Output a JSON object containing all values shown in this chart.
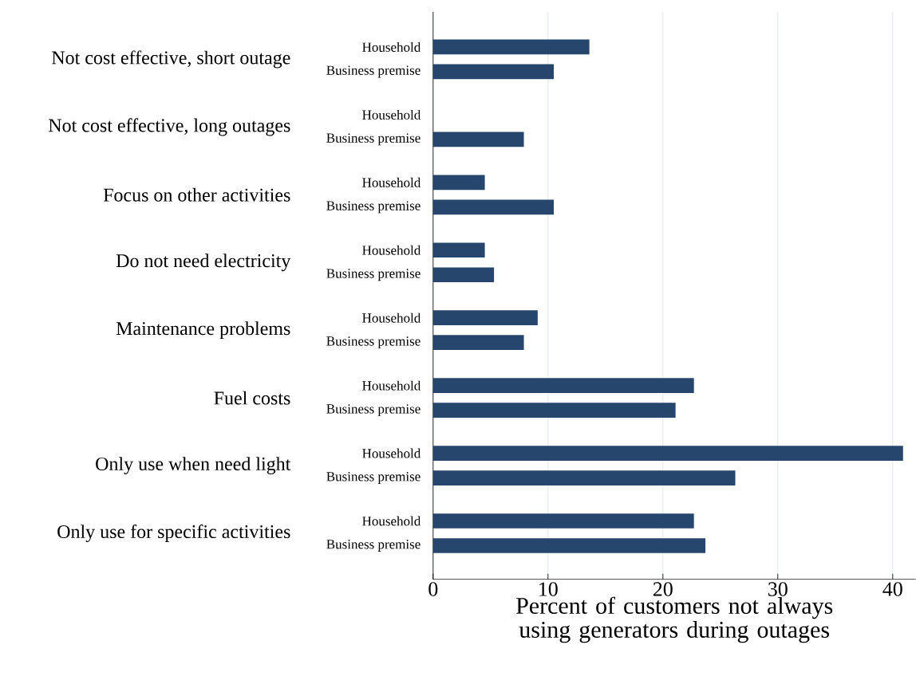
{
  "chart_data": {
    "type": "bar",
    "orientation": "horizontal",
    "categories": [
      "Not cost effective, short outage",
      "Not cost effective, long outages",
      "Focus on other activities",
      "Do not need electricity",
      "Maintenance problems",
      "Fuel costs",
      "Only use when need light",
      "Only use for specific activities"
    ],
    "series": [
      {
        "name": "Household",
        "color": "#26466d",
        "values": [
          13.6,
          0,
          4.5,
          4.5,
          9.1,
          22.7,
          40.9,
          22.7
        ]
      },
      {
        "name": "Business premise",
        "color": "#26466d",
        "values": [
          10.5,
          7.9,
          10.5,
          5.3,
          7.9,
          21.1,
          26.3,
          23.7
        ]
      }
    ],
    "xlim": [
      0,
      42
    ],
    "xticks": [
      0,
      10,
      20,
      30,
      40
    ],
    "xlabel": "Percent of customers not always using generators during outages",
    "grid": "x"
  }
}
